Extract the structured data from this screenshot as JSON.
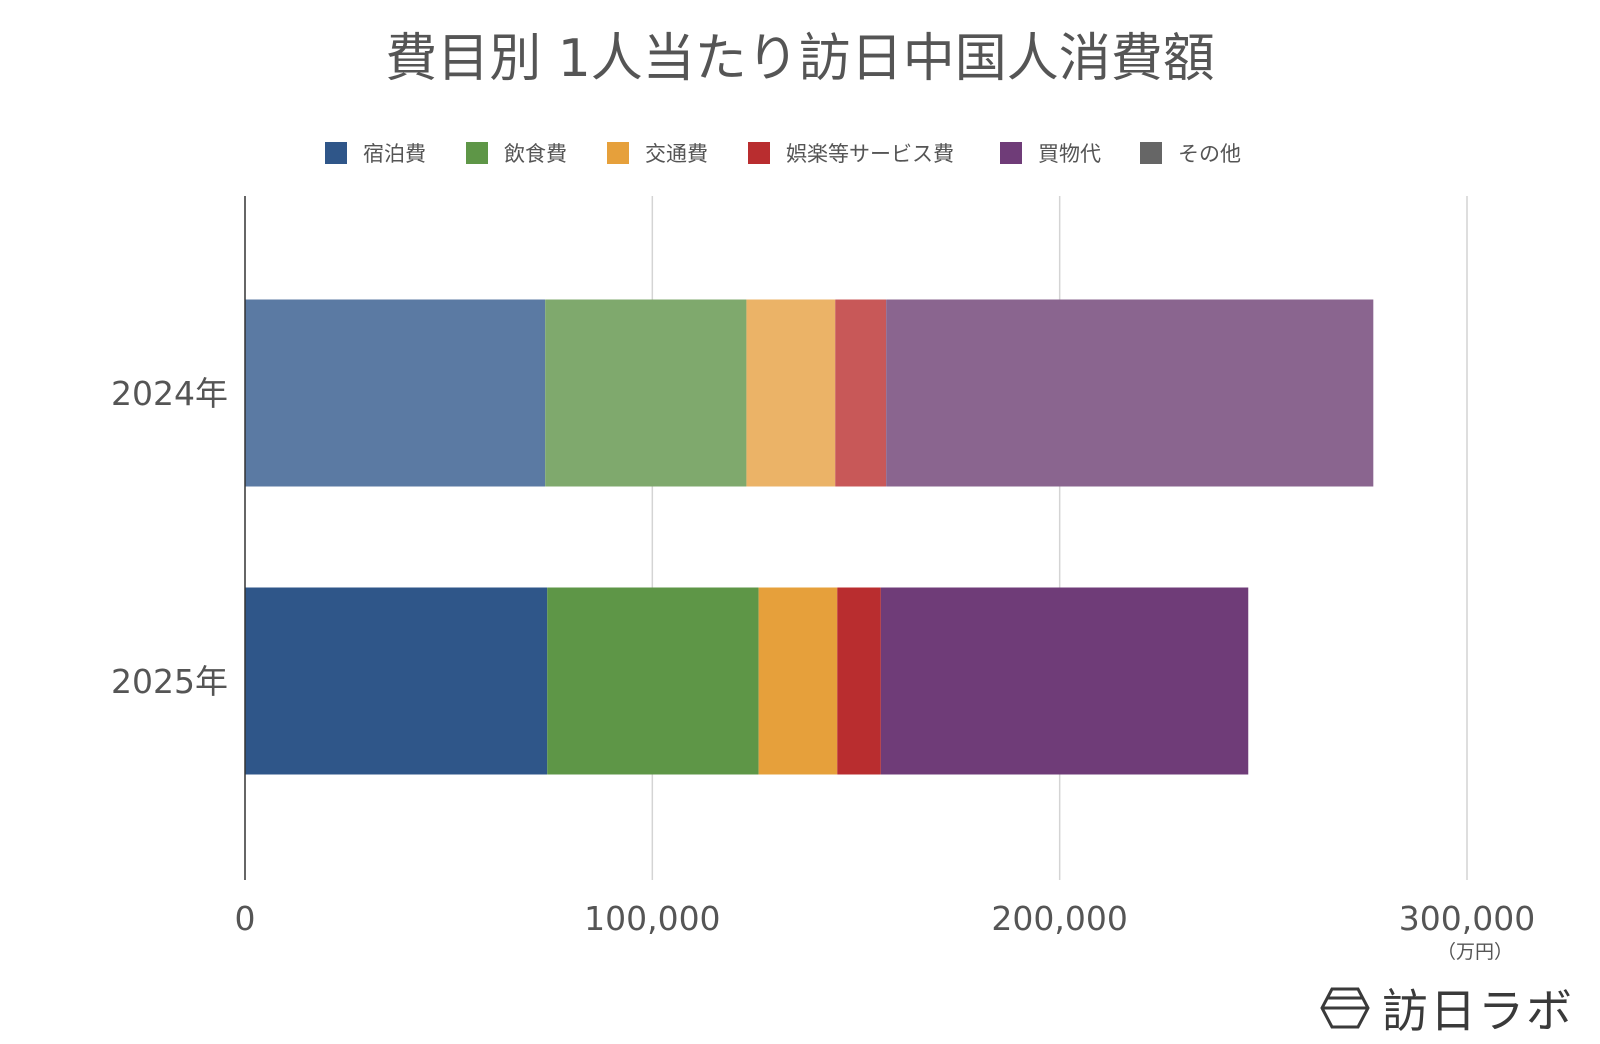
{
  "chart_data": {
    "type": "bar",
    "orientation": "horizontal",
    "stacked": true,
    "title": "費目別 1人当たり訪日中国人消費額",
    "categories": [
      "2024年",
      "2025年"
    ],
    "series": [
      {
        "name": "宿泊費",
        "values": [
          73700,
          74200
        ],
        "colors": [
          "#5b7aa3",
          "#2f5689"
        ]
      },
      {
        "name": "飲食費",
        "values": [
          49400,
          51900
        ],
        "colors": [
          "#7fa96d",
          "#5e9647"
        ]
      },
      {
        "name": "交通費",
        "values": [
          21800,
          19300
        ],
        "colors": [
          "#ebb367",
          "#e6a03b"
        ]
      },
      {
        "name": "娯楽等サービス費",
        "values": [
          12500,
          10700
        ],
        "colors": [
          "#c85858",
          "#b92d2f"
        ]
      },
      {
        "name": "買物代",
        "values": [
          119600,
          90200
        ],
        "colors": [
          "#8a658f",
          "#6f3c78"
        ]
      },
      {
        "name": "その他",
        "values": [
          0,
          0
        ],
        "colors": [
          "#666666",
          "#666666"
        ]
      }
    ],
    "xlim": [
      0,
      300000
    ],
    "xticks": [
      "0",
      "100,000",
      "200,000",
      "300,000"
    ],
    "xtick_values": [
      0,
      100000,
      200000,
      300000
    ],
    "unit_label": "（万円）",
    "legend_position": "top",
    "grid": true
  },
  "branding": {
    "logo_text": "訪日ラボ"
  }
}
